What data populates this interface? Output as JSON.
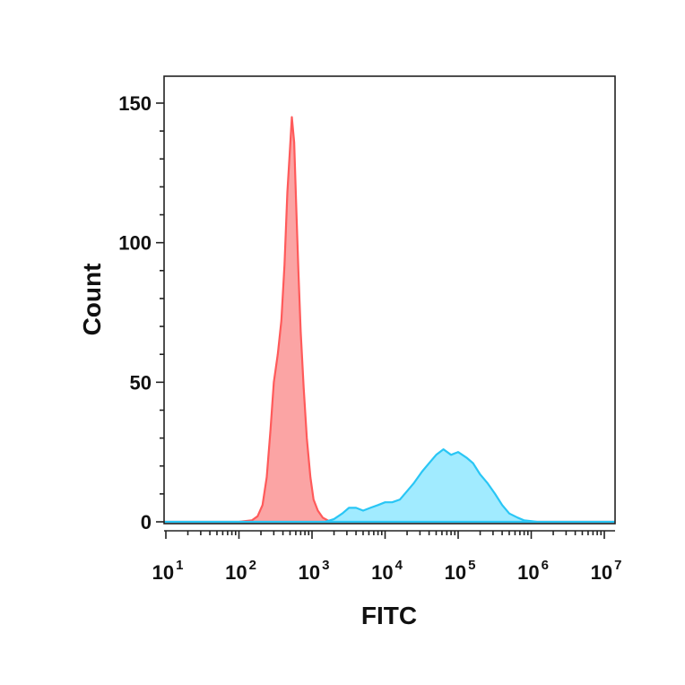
{
  "chart_data": {
    "type": "area",
    "xlabel": "FITC",
    "ylabel": "Count",
    "xscale": "log",
    "xlim": [
      10,
      10000000
    ],
    "ylim": [
      0,
      160
    ],
    "x_ticks": [
      {
        "value": 10,
        "base": "10",
        "exp": "1"
      },
      {
        "value": 100,
        "base": "10",
        "exp": "2"
      },
      {
        "value": 1000,
        "base": "10",
        "exp": "3"
      },
      {
        "value": 10000,
        "base": "10",
        "exp": "4"
      },
      {
        "value": 100000,
        "base": "10",
        "exp": "5"
      },
      {
        "value": 1000000,
        "base": "10",
        "exp": "6"
      },
      {
        "value": 10000000,
        "base": "10",
        "exp": "7"
      }
    ],
    "y_ticks": [
      {
        "value": 0,
        "label": "0"
      },
      {
        "value": 50,
        "label": "50"
      },
      {
        "value": 100,
        "label": "100"
      },
      {
        "value": 150,
        "label": "150"
      }
    ],
    "grid": false,
    "legend": "none",
    "series": [
      {
        "color": "#ff5a5a",
        "fill": "#fb9a9a",
        "points": [
          [
            4,
            0
          ],
          [
            100,
            0
          ],
          [
            150,
            0.5
          ],
          [
            180,
            2
          ],
          [
            210,
            6
          ],
          [
            240,
            16
          ],
          [
            270,
            33
          ],
          [
            300,
            50
          ],
          [
            340,
            60
          ],
          [
            380,
            72
          ],
          [
            420,
            92
          ],
          [
            460,
            118
          ],
          [
            500,
            134
          ],
          [
            530,
            145
          ],
          [
            570,
            136
          ],
          [
            610,
            112
          ],
          [
            650,
            90
          ],
          [
            700,
            68
          ],
          [
            770,
            48
          ],
          [
            850,
            30
          ],
          [
            950,
            16
          ],
          [
            1050,
            8
          ],
          [
            1200,
            4
          ],
          [
            1400,
            1.5
          ],
          [
            1700,
            0.3
          ],
          [
            2100,
            0
          ],
          [
            20000000,
            0
          ]
        ]
      },
      {
        "color": "#29c6f5",
        "fill": "#90e8ff",
        "points": [
          [
            4,
            0
          ],
          [
            1500,
            0
          ],
          [
            2000,
            1
          ],
          [
            2600,
            3
          ],
          [
            3200,
            5
          ],
          [
            4000,
            5
          ],
          [
            5000,
            4
          ],
          [
            6300,
            5
          ],
          [
            8000,
            6
          ],
          [
            10000,
            7
          ],
          [
            12500,
            7
          ],
          [
            16000,
            8
          ],
          [
            20000,
            11
          ],
          [
            25000,
            14
          ],
          [
            32000,
            18
          ],
          [
            40000,
            21
          ],
          [
            50000,
            24
          ],
          [
            63000,
            26
          ],
          [
            80000,
            24
          ],
          [
            100000,
            25
          ],
          [
            130000,
            23
          ],
          [
            160000,
            21
          ],
          [
            200000,
            17
          ],
          [
            250000,
            14
          ],
          [
            320000,
            10
          ],
          [
            400000,
            6
          ],
          [
            500000,
            3
          ],
          [
            650000,
            1.5
          ],
          [
            800000,
            0.5
          ],
          [
            1200000,
            0
          ],
          [
            20000000,
            0
          ]
        ]
      }
    ]
  }
}
